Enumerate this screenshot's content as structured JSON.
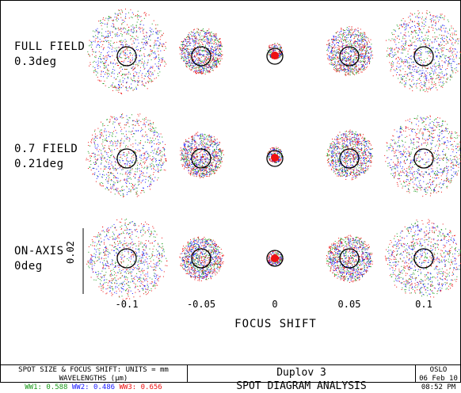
{
  "row_labels": [
    {
      "line1": "FULL FIELD",
      "line2": "0.3deg"
    },
    {
      "line1": "0.7 FIELD",
      "line2": "0.21deg"
    },
    {
      "line1": "ON-AXIS",
      "line2": "0deg"
    }
  ],
  "scale_label": "0.02",
  "focus_shift_ticks": [
    "-0.1",
    "-0.05",
    "0",
    "0.05",
    "0.1"
  ],
  "x_axis_title": "FOCUS SHIFT",
  "footer": {
    "units_line": "SPOT SIZE & FOCUS SHIFT: UNITS = mm",
    "wavelengths_label": "WAVELENGTHS (μm)",
    "wavelengths": [
      {
        "name": "WW1:",
        "value": "0.588",
        "color": "#1a9a1a"
      },
      {
        "name": "WW2:",
        "value": "0.486",
        "color": "#1a1aff"
      },
      {
        "name": "WW3:",
        "value": "0.656",
        "color": "#ee1111"
      }
    ],
    "lens_title": "Duplov 3",
    "analysis_title": "SPOT DIAGRAM ANALYSIS",
    "program": "OSLO",
    "date": "06 Feb 10",
    "time": "08:52 PM"
  },
  "chart_data": {
    "type": "scatter",
    "title": "SPOT DIAGRAM ANALYSIS",
    "xlabel": "FOCUS SHIFT",
    "x": [
      -0.1,
      -0.05,
      0,
      0.05,
      0.1
    ],
    "rows": [
      "FULL FIELD 0.3deg",
      "0.7 FIELD 0.21deg",
      "ON-AXIS 0deg"
    ],
    "series_colors": {
      "WW1": "#1a9a1a",
      "WW2": "#1a1aff",
      "WW3": "#ee1111"
    },
    "scale_bar": 0.02
  }
}
